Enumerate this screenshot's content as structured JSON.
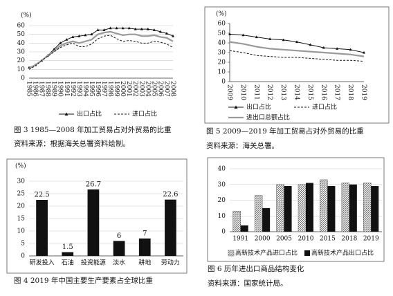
{
  "chart_data": [
    {
      "type": "line",
      "caption": "图 3  1985—2008 年加工贸易占对外贸易的比重",
      "source": "资料来源：根据海关总署资料绘制。",
      "ylabel": "(%)",
      "categories": [
        "1985",
        "1986",
        "1987",
        "1988",
        "1989",
        "1990",
        "1991",
        "1992",
        "1993",
        "1994",
        "1995",
        "1996",
        "1997",
        "1998",
        "1999",
        "2000",
        "2001",
        "2002",
        "2003",
        "2004",
        "2005",
        "2006",
        "2007",
        "2008"
      ],
      "series": [
        {
          "name": "出口占比",
          "color": "#111111",
          "marker": true,
          "values": [
            12,
            15,
            20,
            26,
            33,
            40,
            44,
            47,
            48,
            49,
            50,
            55,
            55,
            57,
            57,
            57,
            57,
            56,
            56,
            56,
            55,
            53,
            51,
            48
          ]
        },
        {
          "color": "#999999",
          "width": 2.2,
          "values": [
            11,
            15,
            20,
            26,
            31,
            37,
            40,
            42,
            40,
            42,
            44,
            50,
            52,
            53,
            51,
            49,
            50,
            50,
            48,
            48,
            49,
            47,
            46,
            42
          ]
        },
        {
          "name": "进口占比",
          "color": "#111111",
          "dashed": true,
          "values": [
            10,
            14,
            20,
            25,
            30,
            35,
            38,
            40,
            36,
            36,
            39,
            45,
            48,
            49,
            45,
            42,
            43,
            42,
            40,
            40,
            42,
            41,
            39,
            35
          ]
        }
      ],
      "ylim": [
        0,
        60
      ],
      "yticks": [
        0,
        10,
        20,
        30,
        40,
        50,
        60
      ],
      "grid": true
    },
    {
      "type": "line",
      "caption": "图 5  2009—2019 年加工贸易占对外贸易的比重",
      "source": "资料来源：海关总署。",
      "ylabel": "(%)",
      "categories": [
        "2009",
        "2010",
        "2011",
        "2012",
        "2013",
        "2014",
        "2015",
        "2016",
        "2017",
        "2018",
        "2019"
      ],
      "series": [
        {
          "name": "出口占比",
          "color": "#111111",
          "marker": true,
          "values": [
            49,
            48,
            46,
            44,
            43,
            41,
            38,
            35,
            34,
            33,
            30
          ]
        },
        {
          "name": "进口占比",
          "color": "#111111",
          "dashed": true,
          "values": [
            32,
            30,
            27,
            26,
            25,
            25,
            24,
            23,
            22,
            22,
            21
          ]
        },
        {
          "name": "进出口总额占比",
          "color": "#999999",
          "width": 2.2,
          "values": [
            41,
            39,
            36,
            34,
            33,
            32,
            31,
            30,
            29,
            28,
            26
          ]
        }
      ],
      "ylim": [
        0,
        60
      ],
      "yticks": [
        0,
        10,
        20,
        30,
        40,
        50,
        60
      ],
      "grid": false
    },
    {
      "type": "bar",
      "caption": "图 4  2019 年中国主要生产要素占全球比重",
      "ylabel": "(%)",
      "categories": [
        "研发投入",
        "石油",
        "投资能源",
        "淡水",
        "耕地",
        "劳动力"
      ],
      "series": [
        {
          "color": "#111111",
          "values": [
            22.5,
            1.5,
            26.7,
            6,
            7,
            22.6
          ]
        }
      ],
      "value_labels": true,
      "ylim": [
        0,
        30
      ],
      "yticks": [
        0,
        5,
        10,
        15,
        20,
        25,
        30
      ],
      "grid": true
    },
    {
      "type": "bar",
      "caption": "图 6  历年进出口商品结构变化",
      "source": "资料来源：国家统计局。",
      "categories": [
        "1991",
        "2000",
        "2005",
        "2010",
        "2015",
        "2018",
        "2019"
      ],
      "series": [
        {
          "name": "高新技术产品进口占比",
          "color": "#888888",
          "pattern": "hatch",
          "values": [
            13,
            23,
            30,
            30,
            33,
            31,
            31
          ]
        },
        {
          "name": "高新技术产品出口占比",
          "color": "#111111",
          "values": [
            4,
            15,
            29,
            31,
            29,
            30,
            29
          ]
        }
      ],
      "ylim": [
        0,
        40
      ],
      "yticks": [
        0,
        10,
        20,
        30,
        40
      ],
      "grid": true
    }
  ]
}
